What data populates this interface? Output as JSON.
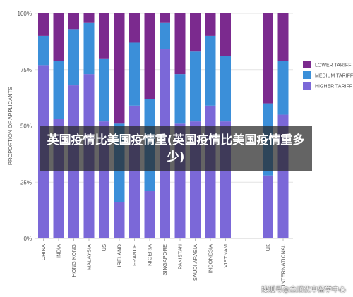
{
  "chart_data": {
    "type": "bar",
    "stacked": true,
    "orientation": "vertical",
    "ylabel": "PROPORTION OF APPLICANTS",
    "xlabel": "",
    "ylim": [
      0,
      100
    ],
    "yticks": [
      "0%",
      "25%",
      "50%",
      "75%",
      "100%"
    ],
    "grid": true,
    "legend_position": "right",
    "categories": [
      "CHINA",
      "INDIA",
      "HONG KONG",
      "MALAYSIA",
      "US",
      "IRELAND",
      "FRANCE",
      "NIGERIA",
      "SINGAPORE",
      "PAKISTAN",
      "SAUDI ARABIA",
      "INDONESIA",
      "VIETNAM",
      "UK",
      "INTERNATIONAL"
    ],
    "series": [
      {
        "name": "HIGHER TARIFF",
        "color": "#7b68d8",
        "values": [
          77,
          53,
          68,
          73,
          52,
          16,
          59,
          21,
          84,
          51,
          52,
          59,
          52,
          28,
          55
        ]
      },
      {
        "name": "MEDIUM TARIFF",
        "color": "#3b8fd9",
        "values": [
          13,
          26,
          25,
          23,
          28,
          35,
          28,
          41,
          12,
          22,
          31,
          31,
          29,
          32,
          24
        ]
      },
      {
        "name": "LOWER TARIFF",
        "color": "#7b2a8e",
        "values": [
          10,
          21,
          7,
          4,
          20,
          49,
          13,
          38,
          4,
          27,
          17,
          10,
          19,
          40,
          21
        ]
      }
    ]
  },
  "overlay": {
    "title": "英国疫情比美国疫情重(英国疫情比美国疫情重多少)",
    "watermark": "搜狐号@金顺优申留学中心"
  }
}
